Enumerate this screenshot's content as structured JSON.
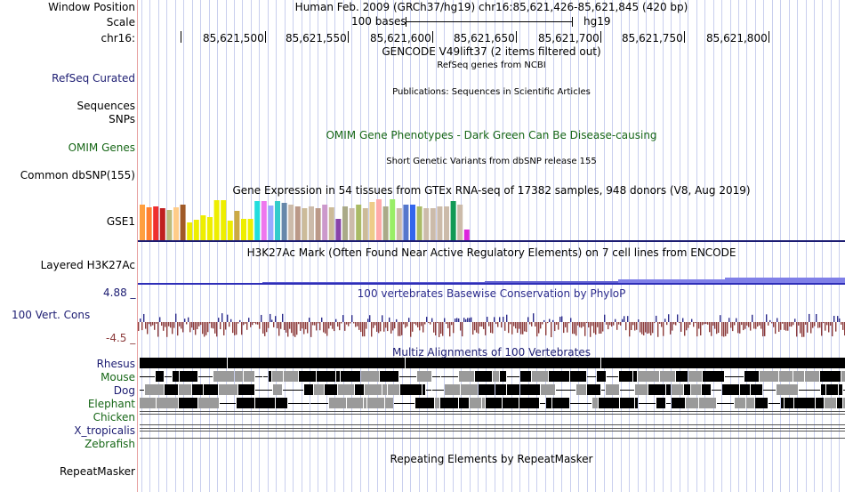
{
  "colors": {
    "blue_label": "#1c1c72",
    "green_label": "#176717",
    "omim_green": "#176717",
    "phylop_pos": "#2b2b8c",
    "phylop_neg": "#8c3b3b",
    "h3k_bar": "#2e2eb8",
    "h3k_fill": "#8080e8",
    "alignment_dark": "#000000",
    "alignment_gray": "#999999"
  },
  "header": {
    "window_position_label": "Window Position",
    "window_position_value": "Human Feb. 2009 (GRCh37/hg19)   chr16:85,621,426-85,621,845 (420 bp)",
    "scale_label": "Scale",
    "scale_bases": "100 bases",
    "scale_assembly": "hg19",
    "chrom_label": "chr16:",
    "ticks": [
      "85,621,500",
      "85,621,550",
      "85,621,600",
      "85,621,650",
      "85,621,700",
      "85,621,750",
      "85,621,800"
    ]
  },
  "tracks": {
    "gencode_title": "GENCODE V49lift37 (2 items filtered out)",
    "refseq_label": "RefSeq Curated",
    "refseq_desc": "RefSeq genes from NCBI",
    "publications_desc": "Publications: Sequences in Scientific Articles",
    "sequences_label": "Sequences",
    "snps_label": "SNPs",
    "omim_label": "OMIM Genes",
    "omim_desc": "OMIM Gene Phenotypes - Dark Green Can Be Disease-causing",
    "dbsnp_desc": "Short Genetic Variants from dbSNP release 155",
    "dbsnp_label": "Common dbSNP(155)",
    "gtex_desc": "Gene Expression in 54 tissues from GTEx RNA-seq of 17382 samples, 948 donors (V8, Aug 2019)",
    "gse1_label": "GSE1",
    "h3k27ac_desc": "H3K27Ac Mark (Often Found Near Active Regulatory Elements) on 7 cell lines from ENCODE",
    "h3k27ac_label": "Layered H3K27Ac",
    "phylop_desc": "100 vertebrates Basewise Conservation by PhyloP",
    "phylop_label": "100 Vert. Cons",
    "phylop_max": "4.88 _",
    "phylop_min": "-4.5 _",
    "multiz_desc": "Multiz Alignments of 100 Vertebrates",
    "repeatmasker_desc": "Repeating Elements by RepeatMasker",
    "repeatmasker_label": "RepeatMasker"
  },
  "species": [
    {
      "name": "Rhesus",
      "color": "#1c1c72"
    },
    {
      "name": "Mouse",
      "color": "#176717"
    },
    {
      "name": "Dog",
      "color": "#1c1c72"
    },
    {
      "name": "Elephant",
      "color": "#176717"
    },
    {
      "name": "Chicken",
      "color": "#176717"
    },
    {
      "name": "X_tropicalis",
      "color": "#1c1c72"
    },
    {
      "name": "Zebrafish",
      "color": "#176717"
    }
  ],
  "gtex_tissue_colors": [
    "#ff9f3f",
    "#ff7f2f",
    "#ef2f2f",
    "#c02020",
    "#bcbc7c",
    "#ffcc88",
    "#a05a28",
    "#eeee00",
    "#eeee00",
    "#eeee00",
    "#eeee00",
    "#eeee00",
    "#eeee00",
    "#eeee00",
    "#ccaa44",
    "#eeee00",
    "#eeee00",
    "#22dddd",
    "#ee77ee",
    "#99aaff",
    "#33cccc",
    "#6688aa",
    "#ccbbaa",
    "#bb9988",
    "#ccbb99",
    "#ccbbaa",
    "#bb9988",
    "#cc99cc",
    "#ccbb99",
    "#8844aa",
    "#aaaa88",
    "#ccbbaa",
    "#aabb66",
    "#ccbb99",
    "#eecc88",
    "#ffaaaa",
    "#aaaa88",
    "#99ee66",
    "#ccbbaa",
    "#5577cc",
    "#3366ee",
    "#aabb66",
    "#ccbbaa",
    "#ccbbaa",
    "#ccbbaa",
    "#ccbbaa",
    "#119955",
    "#ccbbaa",
    "#dd22dd"
  ]
}
